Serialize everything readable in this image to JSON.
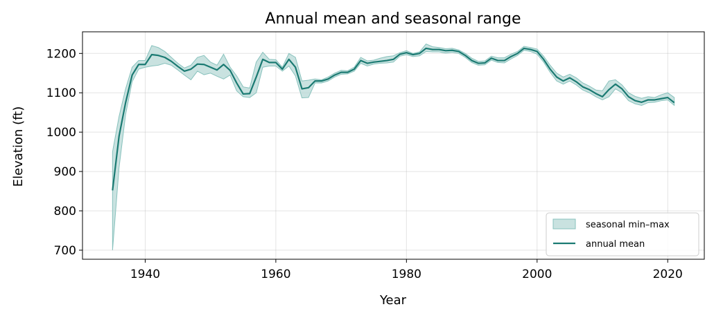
{
  "chart_data": {
    "type": "area",
    "title": "Annual mean and seasonal range",
    "xlabel": "Year",
    "ylabel": "Elevation (ft)",
    "xlim": [
      1930.4,
      2025.6
    ],
    "ylim": [
      677,
      1255
    ],
    "xticks": [
      1940,
      1960,
      1980,
      2000,
      2020
    ],
    "yticks": [
      700,
      800,
      900,
      1000,
      1100,
      1200
    ],
    "grid": true,
    "legend_position": "lower-right",
    "colors": {
      "line": "#1a7a72",
      "band_fill": "#b7d8d5",
      "band_edge": "#88c2bd"
    },
    "legend": [
      {
        "label": "seasonal min–max",
        "kind": "band"
      },
      {
        "label": "annual mean",
        "kind": "line"
      }
    ],
    "x": [
      1935,
      1936,
      1937,
      1938,
      1939,
      1940,
      1941,
      1942,
      1943,
      1944,
      1945,
      1946,
      1947,
      1948,
      1949,
      1950,
      1951,
      1952,
      1953,
      1954,
      1955,
      1956,
      1957,
      1958,
      1959,
      1960,
      1961,
      1962,
      1963,
      1964,
      1965,
      1966,
      1967,
      1968,
      1969,
      1970,
      1971,
      1972,
      1973,
      1974,
      1975,
      1976,
      1977,
      1978,
      1979,
      1980,
      1981,
      1982,
      1983,
      1984,
      1985,
      1986,
      1987,
      1988,
      1989,
      1990,
      1991,
      1992,
      1993,
      1994,
      1995,
      1996,
      1997,
      1998,
      1999,
      2000,
      2001,
      2002,
      2003,
      2004,
      2005,
      2006,
      2007,
      2008,
      2009,
      2010,
      2011,
      2012,
      2013,
      2014,
      2015,
      2016,
      2017,
      2018,
      2019,
      2020,
      2021
    ],
    "series": [
      {
        "name": "annual mean",
        "values": [
          852,
          990,
          1075,
          1145,
          1172,
          1172,
          1197,
          1195,
          1190,
          1180,
          1167,
          1155,
          1160,
          1173,
          1172,
          1165,
          1158,
          1172,
          1157,
          1125,
          1097,
          1098,
          1140,
          1185,
          1177,
          1177,
          1160,
          1185,
          1165,
          1110,
          1113,
          1130,
          1130,
          1135,
          1145,
          1152,
          1152,
          1160,
          1182,
          1175,
          1178,
          1180,
          1182,
          1185,
          1198,
          1202,
          1197,
          1200,
          1213,
          1210,
          1210,
          1207,
          1208,
          1205,
          1195,
          1182,
          1175,
          1176,
          1188,
          1182,
          1182,
          1192,
          1200,
          1213,
          1210,
          1205,
          1185,
          1160,
          1140,
          1130,
          1138,
          1128,
          1115,
          1108,
          1098,
          1090,
          1108,
          1122,
          1110,
          1090,
          1080,
          1076,
          1082,
          1082,
          1085,
          1088,
          1075
        ]
      },
      {
        "name": "seasonal max",
        "values": [
          950,
          1040,
          1110,
          1165,
          1182,
          1182,
          1220,
          1215,
          1205,
          1190,
          1175,
          1163,
          1170,
          1190,
          1195,
          1178,
          1170,
          1198,
          1165,
          1143,
          1115,
          1112,
          1178,
          1203,
          1185,
          1184,
          1165,
          1200,
          1190,
          1130,
          1132,
          1135,
          1133,
          1140,
          1150,
          1157,
          1156,
          1165,
          1190,
          1181,
          1183,
          1188,
          1192,
          1194,
          1202,
          1207,
          1200,
          1204,
          1224,
          1217,
          1215,
          1212,
          1213,
          1209,
          1200,
          1188,
          1180,
          1181,
          1193,
          1189,
          1189,
          1198,
          1205,
          1218,
          1215,
          1211,
          1193,
          1170,
          1150,
          1140,
          1147,
          1138,
          1125,
          1117,
          1107,
          1105,
          1130,
          1133,
          1120,
          1100,
          1091,
          1086,
          1090,
          1088,
          1095,
          1100,
          1088
        ]
      },
      {
        "name": "seasonal min",
        "values": [
          700,
          910,
          1045,
          1128,
          1160,
          1165,
          1168,
          1170,
          1175,
          1170,
          1158,
          1145,
          1133,
          1155,
          1146,
          1150,
          1142,
          1135,
          1145,
          1105,
          1090,
          1088,
          1100,
          1165,
          1168,
          1168,
          1155,
          1168,
          1143,
          1087,
          1088,
          1125,
          1125,
          1130,
          1140,
          1147,
          1148,
          1155,
          1175,
          1168,
          1173,
          1175,
          1176,
          1178,
          1193,
          1197,
          1192,
          1194,
          1205,
          1204,
          1204,
          1201,
          1203,
          1200,
          1190,
          1177,
          1170,
          1171,
          1183,
          1177,
          1176,
          1186,
          1195,
          1208,
          1205,
          1198,
          1178,
          1152,
          1130,
          1122,
          1130,
          1120,
          1107,
          1100,
          1090,
          1082,
          1090,
          1110,
          1100,
          1080,
          1072,
          1068,
          1075,
          1076,
          1080,
          1082,
          1068
        ]
      }
    ]
  }
}
